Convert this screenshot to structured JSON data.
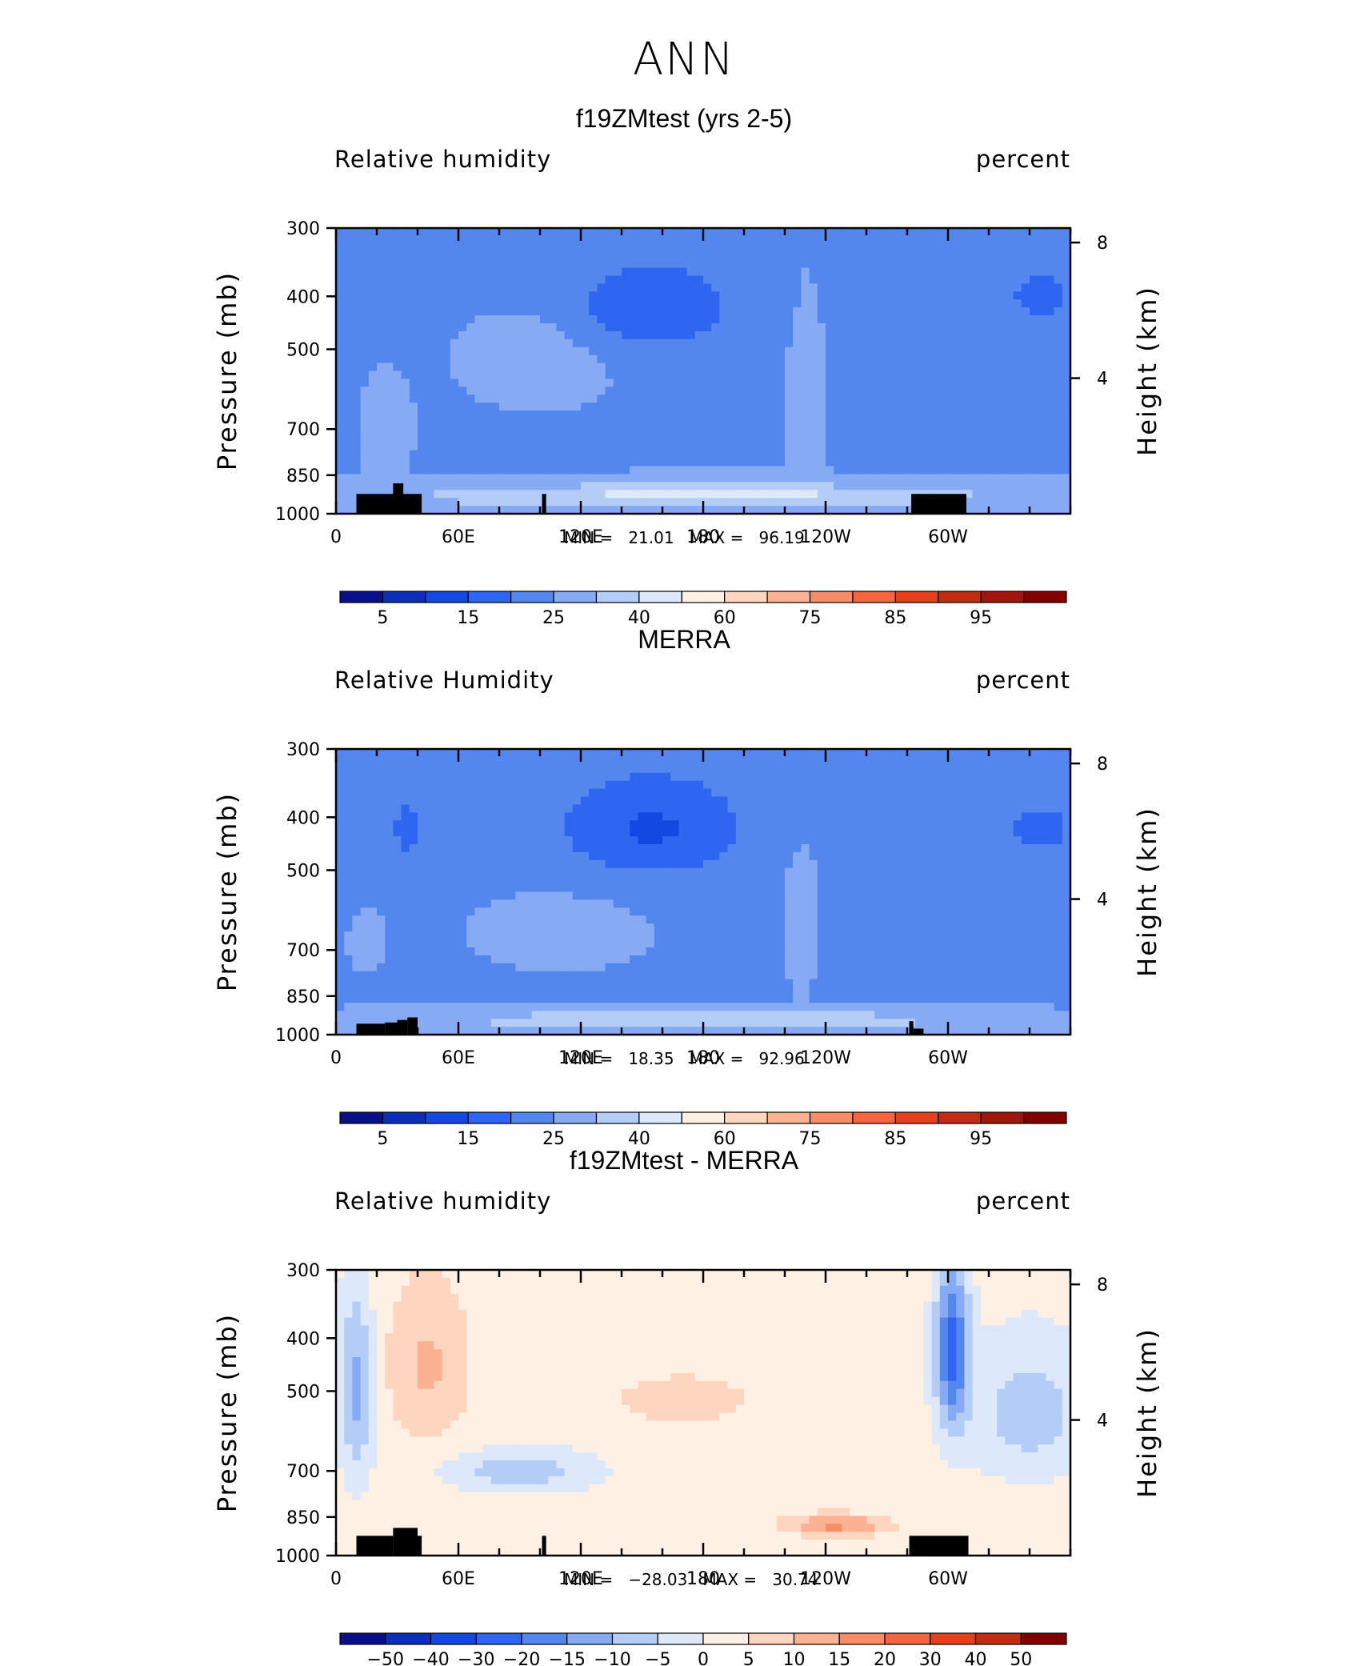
{
  "title": "ANN",
  "y_axis": {
    "label": "Pressure (mb)",
    "ticks": [
      "300",
      "400",
      "500",
      "700",
      "850",
      "1000"
    ],
    "right_label": "Height (km)",
    "right_ticks": [
      "8",
      "4"
    ]
  },
  "x_axis": {
    "ticks": [
      "0",
      "60E",
      "120E",
      "180",
      "120W",
      "60W"
    ]
  },
  "chart_data": [
    {
      "type": "heatmap",
      "title": "f19ZMtest (yrs 2-5)",
      "left_string": "Relative humidity",
      "right_string": "percent",
      "min_label": "MIN =",
      "min": "21.01",
      "max_label": "MAX =",
      "max": "96.19",
      "colorbar_ticks": [
        "5",
        "15",
        "25",
        "40",
        "60",
        "75",
        "85",
        "95"
      ],
      "colorbar_colors": [
        "#08108a",
        "#0c2fb9",
        "#1449e1",
        "#2e66f2",
        "#5487ee",
        "#86aaf3",
        "#b3cdf7",
        "#dde9fb",
        "#fef0e2",
        "#fed5be",
        "#fbb192",
        "#f88c66",
        "#f36640",
        "#e4401c",
        "#c22c10",
        "#a1160a",
        "#830000"
      ],
      "xlim": [
        0,
        360
      ],
      "ylim": [
        1000,
        300
      ]
    },
    {
      "type": "heatmap",
      "title": "MERRA",
      "left_string": "Relative Humidity",
      "right_string": "percent",
      "min_label": "MIN =",
      "min": "18.35",
      "max_label": "MAX =",
      "max": "92.96",
      "colorbar_ticks": [
        "5",
        "15",
        "25",
        "40",
        "60",
        "75",
        "85",
        "95"
      ],
      "colorbar_colors": [
        "#08108a",
        "#0c2fb9",
        "#1449e1",
        "#2e66f2",
        "#5487ee",
        "#86aaf3",
        "#b3cdf7",
        "#dde9fb",
        "#fef0e2",
        "#fed5be",
        "#fbb192",
        "#f88c66",
        "#f36640",
        "#e4401c",
        "#c22c10",
        "#a1160a",
        "#830000"
      ],
      "xlim": [
        0,
        360
      ],
      "ylim": [
        1000,
        300
      ]
    },
    {
      "type": "heatmap",
      "title": "f19ZMtest - MERRA",
      "left_string": "Relative humidity",
      "right_string": "percent",
      "min_label": "MIN =",
      "min": "−28.03",
      "max_label": "MAX =",
      "max": "30.74",
      "colorbar_ticks": [
        "−50",
        "−40",
        "−30",
        "−20",
        "−15",
        "−10",
        "−5",
        "0",
        "5",
        "10",
        "15",
        "20",
        "30",
        "40",
        "50"
      ],
      "colorbar_colors": [
        "#08108a",
        "#0c2fb9",
        "#1449e1",
        "#2e66f2",
        "#5487ee",
        "#86aaf3",
        "#b3cdf7",
        "#dde9fb",
        "#fef0e2",
        "#fed5be",
        "#fbb192",
        "#f88c66",
        "#f36640",
        "#e4401c",
        "#c22c10",
        "#830000"
      ],
      "xlim": [
        0,
        360
      ],
      "ylim": [
        1000,
        300
      ]
    }
  ]
}
